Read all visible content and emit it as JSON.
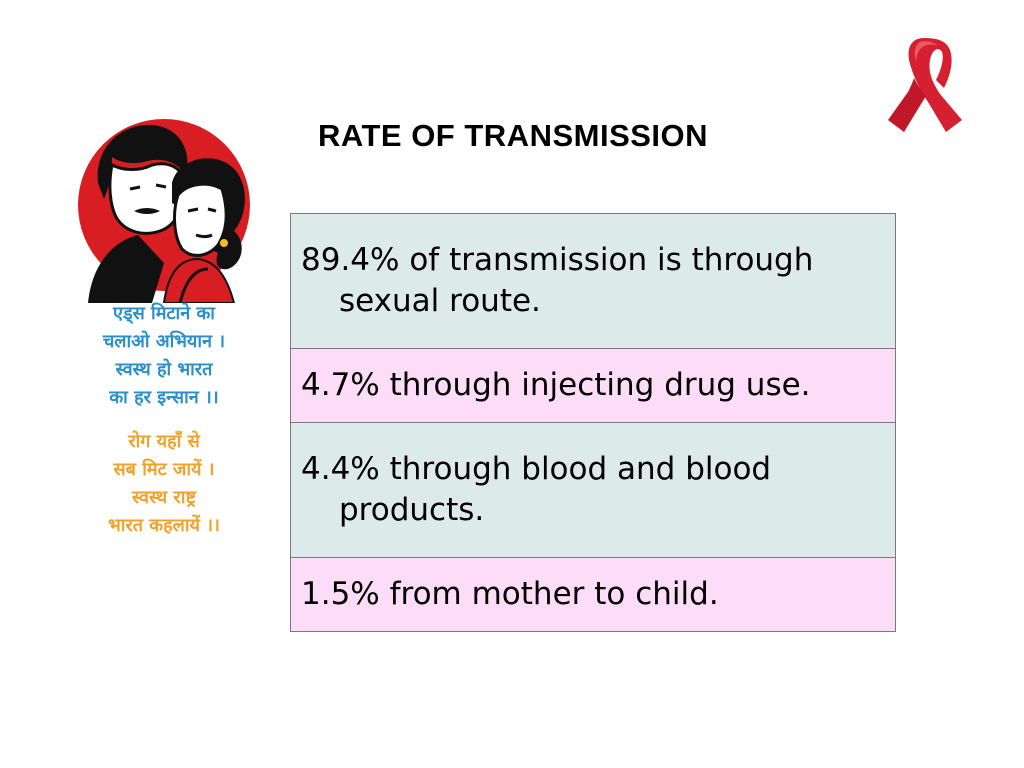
{
  "slide": {
    "title": "RATE OF TRANSMISSION",
    "colors": {
      "row_teal": "#dcebea",
      "row_pink": "#fcdcf6",
      "ribbon_red": "#d42030",
      "emblem_red": "#d81e22",
      "slogan_blue": "#2b8fc9",
      "slogan_orange": "#f0a22a"
    },
    "icons": {
      "ribbon": "red-awareness-ribbon-icon",
      "emblem": "couple-emblem-icon"
    }
  },
  "slogan_blue": [
    "एड्स मिटाने का",
    "चलाओ अभियान ।",
    "स्वस्थ हो भारत",
    "का हर इन्सान ।।"
  ],
  "slogan_orange": [
    "रोग यहाँ से",
    "सब मिट जायें ।",
    "स्वस्थ राष्ट्र",
    "भारत कहलायें ।।"
  ],
  "table": {
    "rows": [
      "89.4% of transmission is through sexual route.",
      "4.7% through injecting drug use.",
      "4.4% through blood and blood products.",
      "1.5% from mother to child."
    ]
  }
}
